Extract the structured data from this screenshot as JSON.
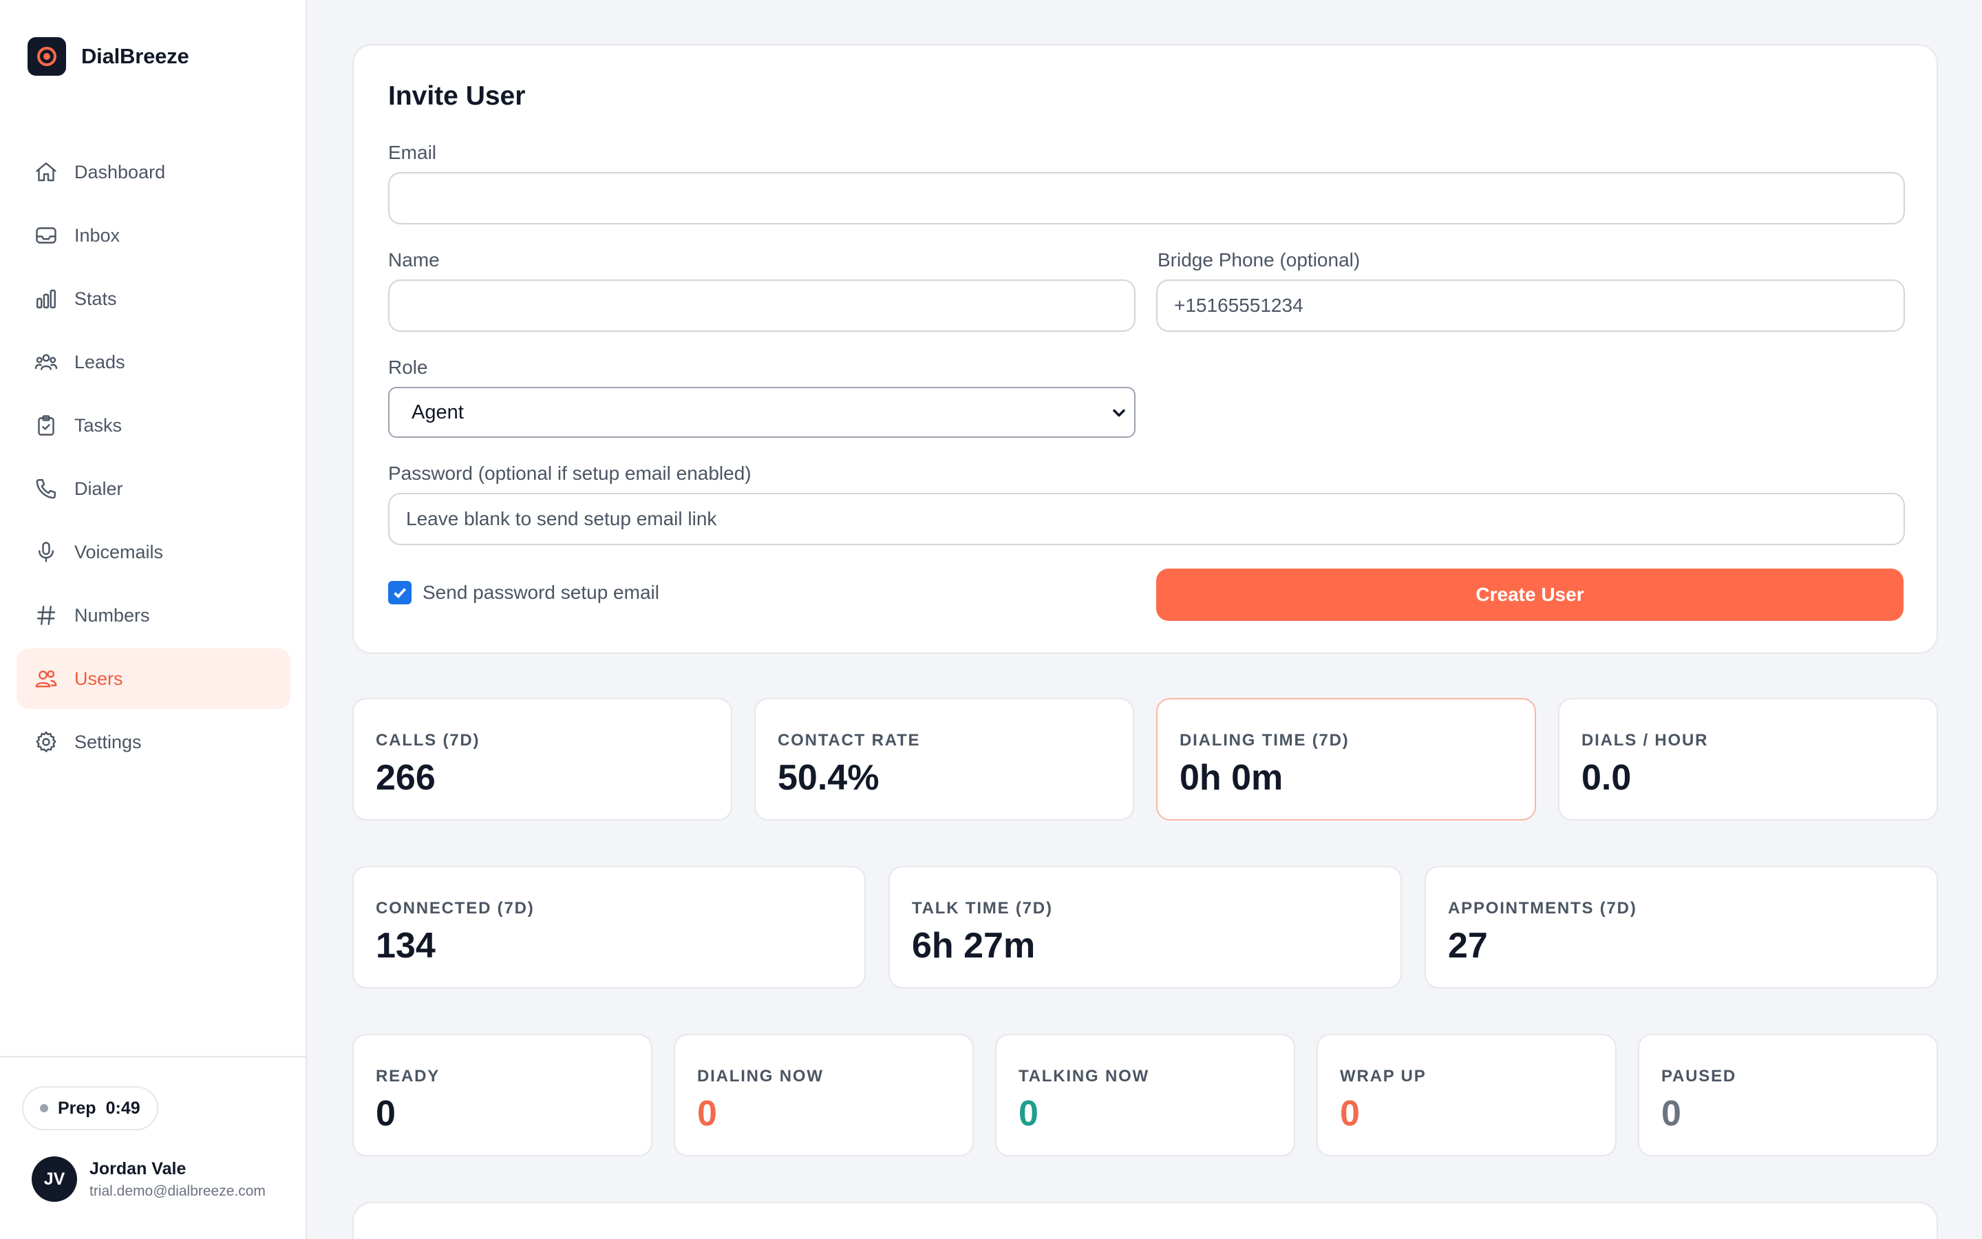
{
  "app": {
    "name": "DialBreeze"
  },
  "sidebar": {
    "items": [
      {
        "label": "Dashboard",
        "icon": "home-icon"
      },
      {
        "label": "Inbox",
        "icon": "inbox-icon"
      },
      {
        "label": "Stats",
        "icon": "bar-chart-icon"
      },
      {
        "label": "Leads",
        "icon": "people-group-icon"
      },
      {
        "label": "Tasks",
        "icon": "clipboard-icon"
      },
      {
        "label": "Dialer",
        "icon": "phone-icon"
      },
      {
        "label": "Voicemails",
        "icon": "microphone-icon"
      },
      {
        "label": "Numbers",
        "icon": "hash-icon"
      },
      {
        "label": "Users",
        "icon": "users-icon",
        "active": true
      },
      {
        "label": "Settings",
        "icon": "gear-icon"
      }
    ],
    "status": {
      "label": "Prep",
      "timer": "0:49"
    },
    "user": {
      "initials": "JV",
      "name": "Jordan Vale",
      "email": "trial.demo@dialbreeze.com"
    }
  },
  "invite": {
    "title": "Invite User",
    "email_label": "Email",
    "email_value": "",
    "name_label": "Name",
    "name_value": "",
    "bridge_label": "Bridge Phone (optional)",
    "bridge_placeholder": "+15165551234",
    "role_label": "Role",
    "role_value": "Agent",
    "password_label": "Password (optional if setup email enabled)",
    "password_placeholder": "Leave blank to send setup email link",
    "send_setup_label": "Send password setup email",
    "send_setup_checked": true,
    "create_button": "Create User"
  },
  "stats_row1": [
    {
      "label": "CALLS (7D)",
      "value": "266"
    },
    {
      "label": "CONTACT RATE",
      "value": "50.4%"
    },
    {
      "label": "DIALING TIME (7D)",
      "value": "0h 0m"
    },
    {
      "label": "DIALS / HOUR",
      "value": "0.0"
    }
  ],
  "stats_row2": [
    {
      "label": "CONNECTED (7D)",
      "value": "134"
    },
    {
      "label": "TALK TIME (7D)",
      "value": "6h 27m"
    },
    {
      "label": "APPOINTMENTS (7D)",
      "value": "27"
    }
  ],
  "stats_row3": [
    {
      "label": "READY",
      "value": "0"
    },
    {
      "label": "DIALING NOW",
      "value": "0"
    },
    {
      "label": "TALKING NOW",
      "value": "0"
    },
    {
      "label": "WRAP UP",
      "value": "0"
    },
    {
      "label": "PAUSED",
      "value": "0"
    }
  ],
  "colors": {
    "accent": "#ff6b4a",
    "active_nav_bg": "#fff0ec",
    "teal": "#1f9e8f",
    "dark": "#111827"
  }
}
